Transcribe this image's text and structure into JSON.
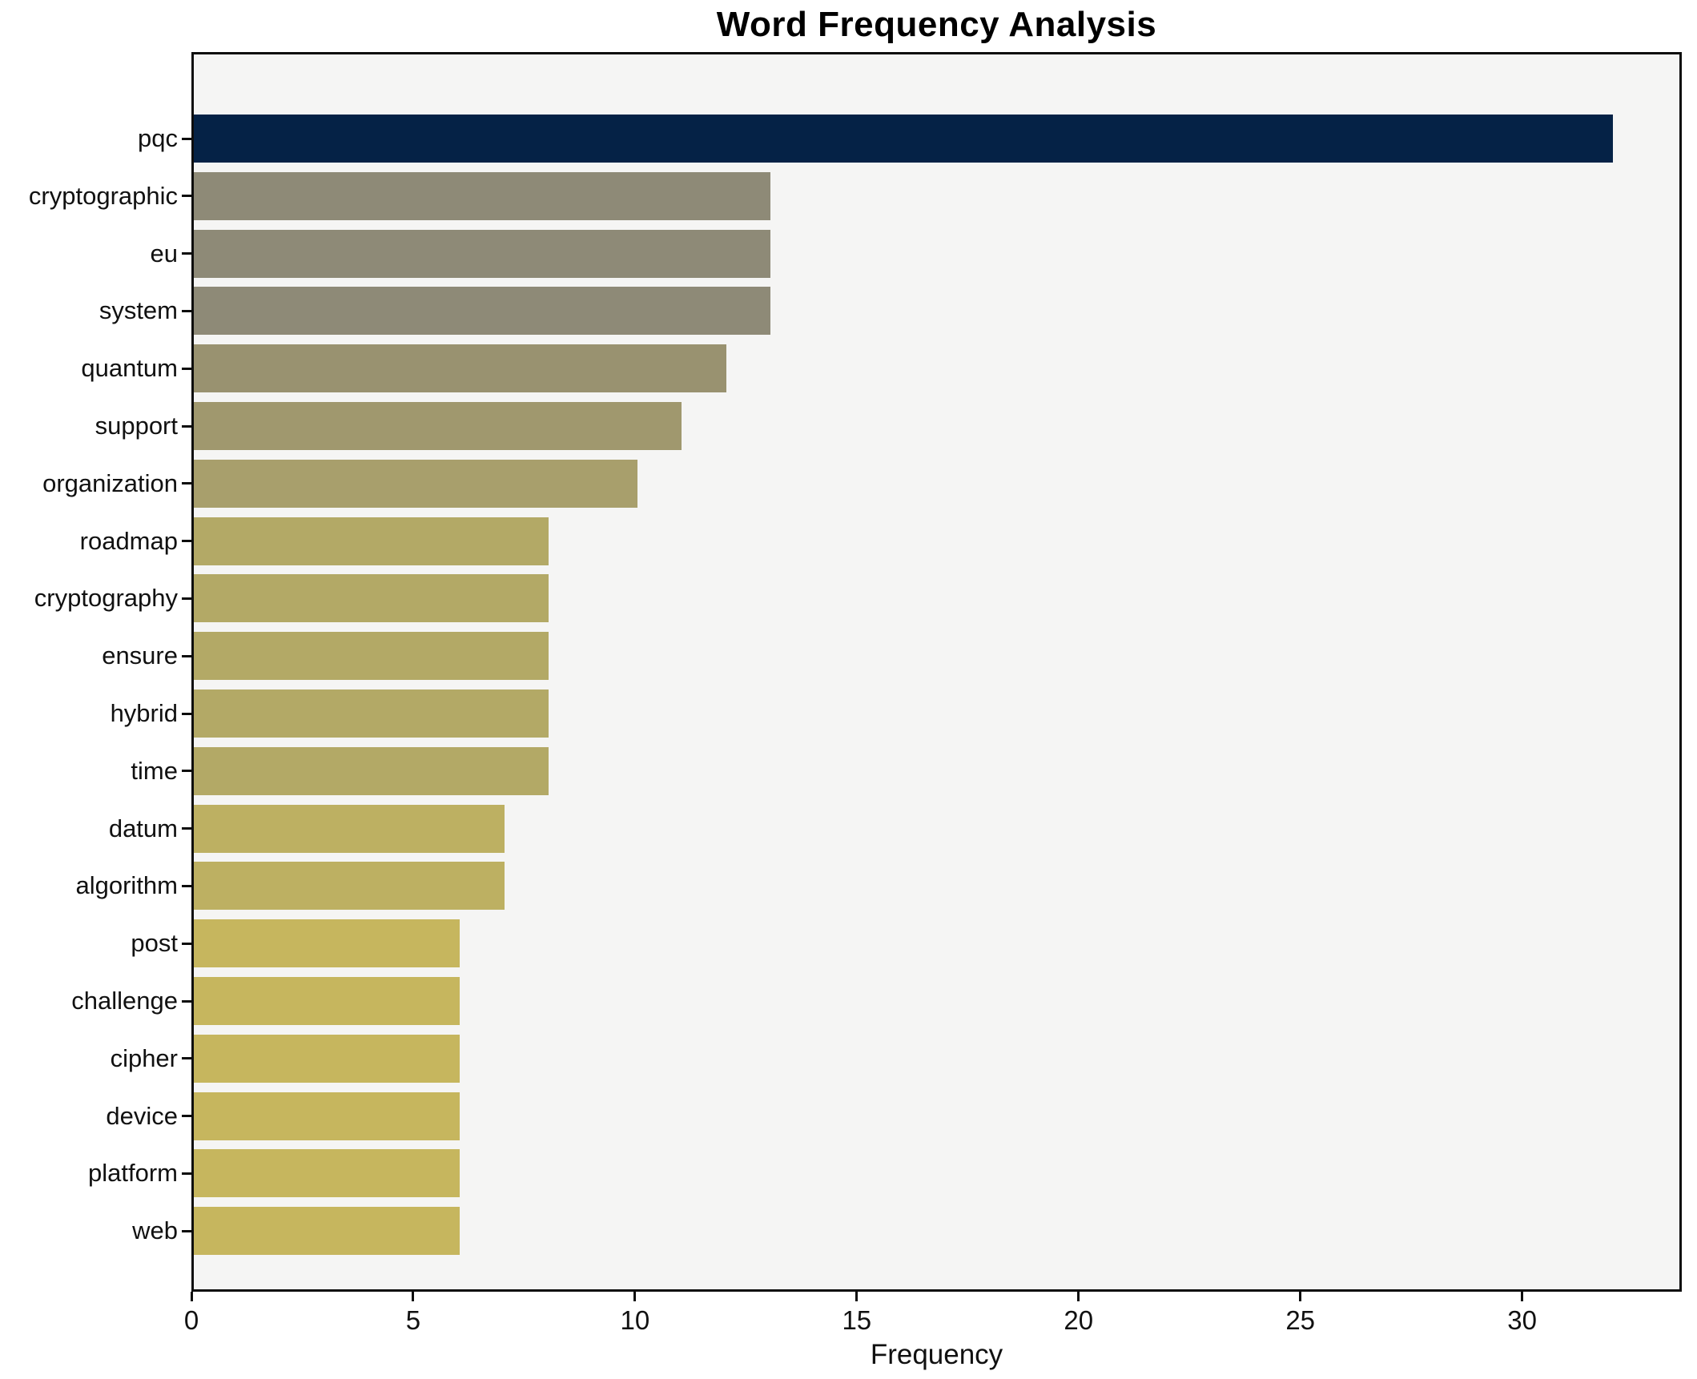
{
  "chart_data": {
    "type": "bar",
    "orientation": "horizontal",
    "title": "Word Frequency Analysis",
    "xlabel": "Frequency",
    "ylabel": "",
    "categories": [
      "pqc",
      "cryptographic",
      "eu",
      "system",
      "quantum",
      "support",
      "organization",
      "roadmap",
      "cryptography",
      "ensure",
      "hybrid",
      "time",
      "datum",
      "algorithm",
      "post",
      "challenge",
      "cipher",
      "device",
      "platform",
      "web"
    ],
    "values": [
      32,
      13,
      13,
      13,
      12,
      11,
      10,
      8,
      8,
      8,
      8,
      8,
      7,
      7,
      6,
      6,
      6,
      6,
      6,
      6
    ],
    "bar_colors": [
      "#052246",
      "#8e8a77",
      "#8e8a77",
      "#8e8a77",
      "#999270",
      "#a0986e",
      "#a89f6c",
      "#b3a966",
      "#b3a966",
      "#b3a966",
      "#b3a966",
      "#b3a966",
      "#bdb062",
      "#bdb062",
      "#c6b65e",
      "#c6b65e",
      "#c6b65e",
      "#c6b65e",
      "#c6b65e",
      "#c6b65e"
    ],
    "x_ticks": [
      0,
      5,
      10,
      15,
      20,
      25,
      30
    ],
    "xlim": [
      0,
      33.6
    ],
    "grid": false,
    "legend": null,
    "plot_background": "#f5f5f4",
    "figure_background": "#ffffff",
    "spine_color": "#0d0d0d",
    "text_color": "#111111"
  }
}
